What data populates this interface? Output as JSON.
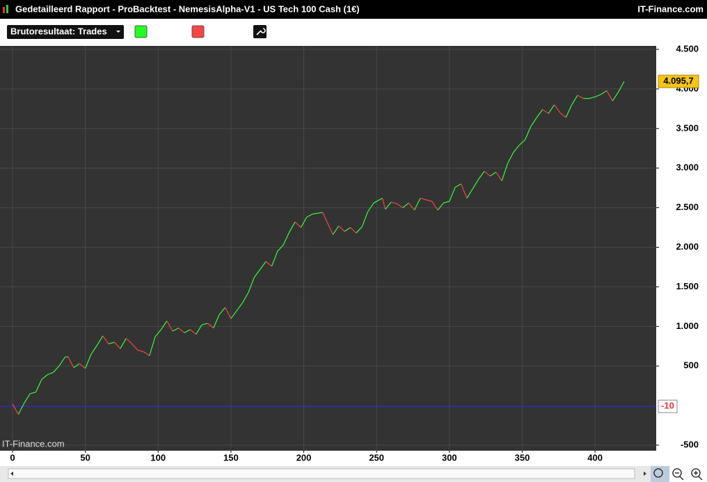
{
  "window": {
    "title": "Gedetailleerd Rapport - ProBacktest - NemesisAlpha-V1 - US Tech 100 Cash (1€)",
    "brand": "IT-Finance.com"
  },
  "toolbar": {
    "dropdown": "Brutoresultaat: Trades"
  },
  "chart_data": {
    "type": "line",
    "watermark": "IT-Finance.com",
    "x": [
      0,
      4,
      8,
      12,
      16,
      20,
      24,
      28,
      32,
      36,
      38,
      42,
      46,
      50,
      54,
      58,
      62,
      66,
      70,
      74,
      78,
      82,
      86,
      90,
      94,
      98,
      102,
      106,
      110,
      114,
      118,
      122,
      126,
      130,
      134,
      138,
      142,
      146,
      150,
      154,
      158,
      162,
      166,
      170,
      174,
      178,
      182,
      186,
      190,
      194,
      198,
      202,
      206,
      213,
      220,
      224,
      228,
      232,
      236,
      240,
      244,
      248,
      254,
      256,
      260,
      264,
      268,
      272,
      276,
      280,
      284,
      288,
      292,
      296,
      300,
      304,
      308,
      312,
      316,
      320,
      324,
      328,
      332,
      336,
      340,
      344,
      348,
      352,
      356,
      360,
      364,
      368,
      372,
      376,
      380,
      384,
      388,
      392,
      396,
      400,
      404,
      408,
      412,
      416,
      420
    ],
    "values": [
      20,
      -110,
      30,
      150,
      170,
      330,
      390,
      420,
      500,
      610,
      620,
      480,
      530,
      470,
      650,
      760,
      880,
      780,
      800,
      720,
      850,
      780,
      700,
      680,
      630,
      870,
      960,
      1070,
      940,
      980,
      920,
      960,
      900,
      1020,
      1040,
      980,
      1150,
      1240,
      1100,
      1200,
      1300,
      1430,
      1620,
      1720,
      1820,
      1760,
      1950,
      2030,
      2190,
      2320,
      2250,
      2380,
      2420,
      2440,
      2160,
      2270,
      2200,
      2250,
      2180,
      2260,
      2450,
      2560,
      2620,
      2480,
      2570,
      2550,
      2500,
      2560,
      2470,
      2620,
      2600,
      2580,
      2470,
      2560,
      2580,
      2760,
      2800,
      2620,
      2740,
      2860,
      2960,
      2900,
      2950,
      2840,
      3060,
      3200,
      3290,
      3360,
      3530,
      3640,
      3740,
      3690,
      3800,
      3700,
      3640,
      3800,
      3920,
      3880,
      3880,
      3900,
      3930,
      3980,
      3850,
      3960,
      4095.7
    ],
    "last_value_label": "4.095,7",
    "up_color": "#33ff33",
    "down_color": "#ff4040",
    "hline": -10,
    "hline_color": "#2a2aff",
    "xlim": [
      -8.6,
      442
    ],
    "ylim": [
      -570,
      4544
    ],
    "xticks": [
      0,
      50,
      100,
      150,
      200,
      250,
      300,
      350,
      400
    ],
    "yticks": [
      -500,
      500,
      {
        "value": 1000,
        "label": "1.000"
      },
      {
        "value": 1500,
        "label": "1.500"
      },
      {
        "value": 2000,
        "label": "2.000"
      },
      {
        "value": 2500,
        "label": "2.500"
      },
      {
        "value": 3000,
        "label": "3.000"
      },
      {
        "value": 3500,
        "label": "3.500"
      },
      {
        "value": 4000,
        "label": "4.000"
      },
      {
        "value": 4500,
        "label": "4.500"
      }
    ],
    "grid": true
  }
}
